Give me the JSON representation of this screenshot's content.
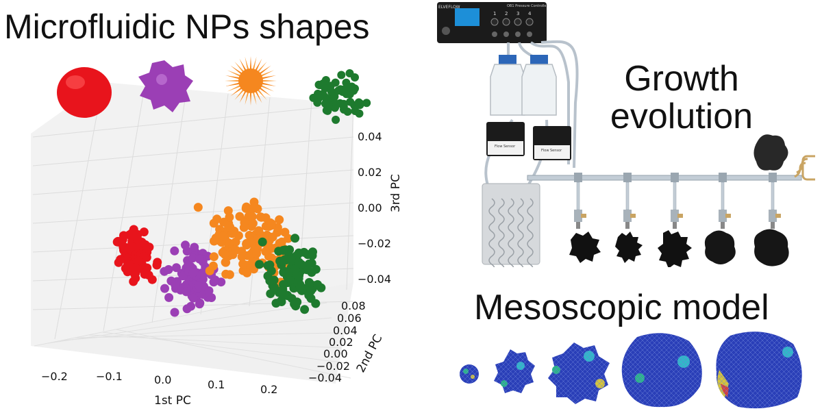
{
  "headings": {
    "shapes_title": "Microfluidic NPs shapes",
    "growth_line1": "Growth",
    "growth_line2": "evolution",
    "mesoscopic": "Mesoscopic model"
  },
  "device": {
    "brand": "ELVEFLOW",
    "controller_label": "OB1 Pressure Controller",
    "channel_numbers": [
      "1",
      "2",
      "3",
      "4"
    ],
    "flow_sensor_label": "Flow Sensor"
  },
  "colors": {
    "red": "#e8141c",
    "purple": "#9b3fb5",
    "orange": "#f5871f",
    "green": "#1e7a2e"
  },
  "chart_data": {
    "type": "scatter",
    "projection": "3d",
    "axes": {
      "x": {
        "label": "1st PC",
        "ticks": [
          "−0.2",
          "−0.1",
          "0.0",
          "0.1",
          "0.2"
        ]
      },
      "y": {
        "label": "2nd PC",
        "ticks": [
          "−0.04",
          "−0.02",
          "0.00",
          "0.02",
          "0.04",
          "0.06",
          "0.08"
        ]
      },
      "z": {
        "label": "3rd PC",
        "ticks": [
          "−0.04",
          "−0.02",
          "0.00",
          "0.02",
          "0.04"
        ]
      }
    },
    "grid": true,
    "series": [
      {
        "color": "#e8141c",
        "shape_icon": "smooth-sphere-icon",
        "center": [
          -0.16,
          0.0,
          -0.005
        ],
        "spread": [
          0.025,
          0.01,
          0.008
        ],
        "count": 110
      },
      {
        "color": "#9b3fb5",
        "shape_icon": "bumpy-sphere-icon",
        "center": [
          -0.06,
          -0.01,
          -0.02
        ],
        "spread": [
          0.035,
          0.015,
          0.012
        ],
        "count": 90
      },
      {
        "color": "#f5871f",
        "shape_icon": "spiky-sphere-icon",
        "center": [
          0.0,
          0.02,
          0.0
        ],
        "spread": [
          0.06,
          0.02,
          0.015
        ],
        "count": 140
      },
      {
        "color": "#1e7a2e",
        "shape_icon": "branched-cluster-icon",
        "center": [
          0.09,
          0.0,
          -0.02
        ],
        "spread": [
          0.05,
          0.02,
          0.014
        ],
        "count": 100
      }
    ]
  }
}
